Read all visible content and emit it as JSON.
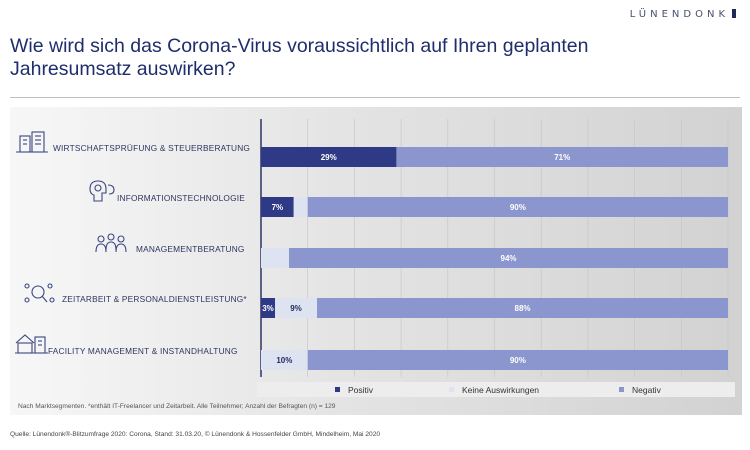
{
  "brand": "LÜNENDONK",
  "title": "Wie wird sich das Corona-Virus voraussichtlich auf Ihren geplanten Jahresumsatz auswirken?",
  "colors": {
    "positiv": "#2f3a86",
    "keine": "#dde3f1",
    "negativ": "#8c96ce",
    "axis": "#1f2a5a"
  },
  "chart_data": {
    "type": "bar",
    "orientation": "horizontal",
    "stacked": true,
    "categories": [
      "WIRTSCHAFTSPRÜFUNG & STEUERBERATUNG",
      "INFORMATIONSTECHNOLOGIE",
      "MANAGEMENTBERATUNG",
      "ZEITARBEIT & PERSONALDIENSTLEISTUNG*",
      "FACILITY MANAGEMENT & INSTANDHALTUNG"
    ],
    "icons": [
      "building-people-icon",
      "it-head-icon",
      "team-meeting-icon",
      "people-search-icon",
      "house-building-icon"
    ],
    "series": [
      {
        "name": "Positiv",
        "values": [
          29,
          7,
          0,
          3,
          0
        ],
        "labels": [
          "29%",
          "7%",
          "",
          "3%",
          ""
        ]
      },
      {
        "name": "Keine Auswirkungen",
        "values": [
          0,
          3,
          6,
          9,
          10
        ],
        "labels": [
          "",
          "3%",
          "6%",
          "9%",
          "10%"
        ]
      },
      {
        "name": "Negativ",
        "values": [
          71,
          90,
          94,
          88,
          90
        ],
        "labels": [
          "71%",
          "90%",
          "94%",
          "88%",
          "90%"
        ]
      }
    ],
    "xlim": [
      0,
      100
    ],
    "grid": true,
    "legend_position": "bottom"
  },
  "footnote": "Nach Marktsegmenten. *enthält IT-Freelancer und Zeitarbeit.  Alle Teilnehmer; Anzahl der Befragten (n) = 129",
  "source": "Quelle: Lünendonk®-Blitzumfrage 2020: Corona, Stand: 31.03.20, © Lünendonk & Hossenfelder GmbH, Mindelheim, Mai 2020"
}
